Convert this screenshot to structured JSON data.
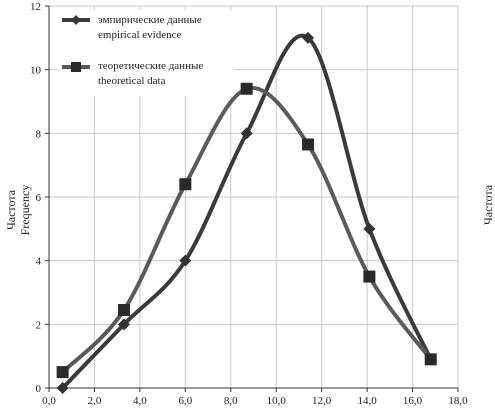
{
  "chart_data": {
    "type": "line",
    "xlim": [
      0,
      18
    ],
    "ylim": [
      0,
      12
    ],
    "x_ticks": [
      "0,0",
      "2,0",
      "4,0",
      "6,0",
      "8,0",
      "10,0",
      "12,0",
      "14,0",
      "16,0",
      "18,0"
    ],
    "y_ticks": [
      "0",
      "2",
      "4",
      "6",
      "8",
      "10",
      "12"
    ],
    "ylabel_ru": "Частота",
    "ylabel_en": "Frequency",
    "right_label": "Частота",
    "grid": true,
    "legend_position": "top-left",
    "series": [
      {
        "name_ru": "эмпирические данные",
        "name_en": "empirical evidence",
        "marker": "diamond",
        "color": "#3a3a3a",
        "x": [
          0.6,
          3.3,
          6.0,
          8.7,
          11.4,
          14.1,
          16.8
        ],
        "y": [
          0,
          2,
          4,
          8,
          11,
          5,
          0.9
        ]
      },
      {
        "name_ru": "теоретические данные",
        "name_en": "theoretical data",
        "marker": "square",
        "color": "#5a5a5a",
        "x": [
          0.6,
          3.3,
          6.0,
          8.7,
          11.4,
          14.1,
          16.8
        ],
        "y": [
          0.5,
          2.45,
          6.4,
          9.4,
          7.65,
          3.5,
          0.9
        ]
      }
    ]
  }
}
